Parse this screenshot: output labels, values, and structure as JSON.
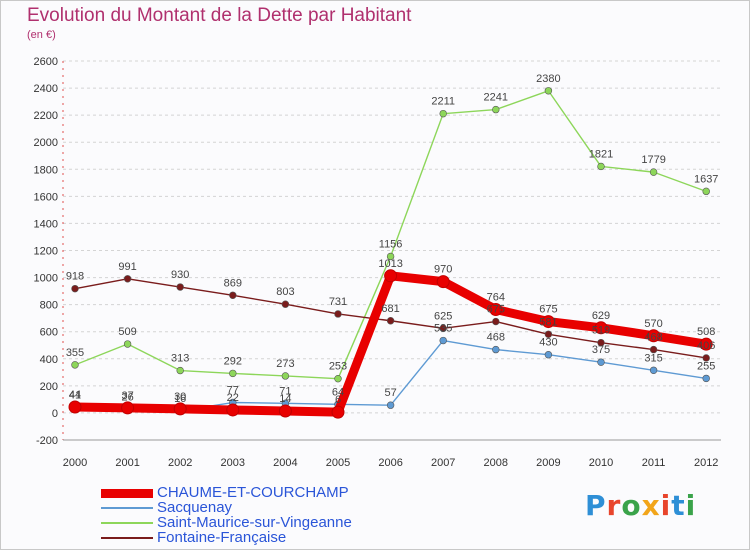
{
  "page": {
    "title": "Evolution du Montant de la Dette par Habitant",
    "subtitle": "(en €)"
  },
  "logo": {
    "text": "Proxiti",
    "colors": [
      "#2e8fd6",
      "#e8452c",
      "#3aa34a",
      "#f2a51a",
      "#e8452c",
      "#2e8fd6",
      "#3aa34a"
    ]
  },
  "chart_data": {
    "type": "line",
    "x": [
      "2000",
      "2001",
      "2002",
      "2003",
      "2004",
      "2005",
      "2006",
      "2007",
      "2008",
      "2009",
      "2010",
      "2011",
      "2012"
    ],
    "ylim": [
      -200,
      2600
    ],
    "yticks": [
      -200,
      0,
      200,
      400,
      600,
      800,
      1000,
      1200,
      1400,
      1600,
      1800,
      2000,
      2200,
      2400,
      2600
    ],
    "grid": "horizontal dashed",
    "legend_position": "bottom-left",
    "series": [
      {
        "name": "CHAUME-ET-COURCHAMP",
        "color": "#e80000",
        "style": "thick",
        "values": [
          44,
          37,
          30,
          22,
          14,
          6,
          1013,
          970,
          764,
          675,
          629,
          570,
          508
        ],
        "labels": [
          "44",
          "37",
          "30",
          "22",
          "14",
          "6",
          "1013",
          "970",
          "764",
          "675",
          "629",
          "570",
          "508"
        ]
      },
      {
        "name": "Sacquenay",
        "color": "#5e9ad3",
        "style": "thin",
        "values": [
          41,
          26,
          16,
          77,
          71,
          64,
          57,
          535,
          468,
          430,
          375,
          315,
          255
        ],
        "labels": [
          "41",
          "26",
          "16",
          "77",
          "71",
          "64",
          "57",
          "535",
          "468",
          "430",
          "375",
          "315",
          "255"
        ]
      },
      {
        "name": "Saint-Maurice-sur-Vingeanne",
        "color": "#8dd65a",
        "style": "thin",
        "values": [
          355,
          509,
          313,
          292,
          273,
          253,
          1156,
          2211,
          2241,
          2380,
          1821,
          1779,
          1637
        ],
        "labels": [
          "355",
          "509",
          "313",
          "292",
          "273",
          "253",
          "1156",
          "2211",
          "2241",
          "2380",
          "1821",
          "1779",
          "1637"
        ]
      },
      {
        "name": "Fontaine-Française",
        "color": "#7a1c1c",
        "style": "thin",
        "values": [
          918,
          991,
          930,
          869,
          803,
          731,
          681,
          625,
          675,
          581,
          519,
          468,
          406
        ],
        "labels": [
          "918",
          "991",
          "930",
          "869",
          "803",
          "731",
          "681",
          "625",
          "675",
          "581",
          "519",
          "468",
          "406"
        ]
      }
    ],
    "legend_order": [
      0,
      1,
      2,
      3
    ]
  }
}
